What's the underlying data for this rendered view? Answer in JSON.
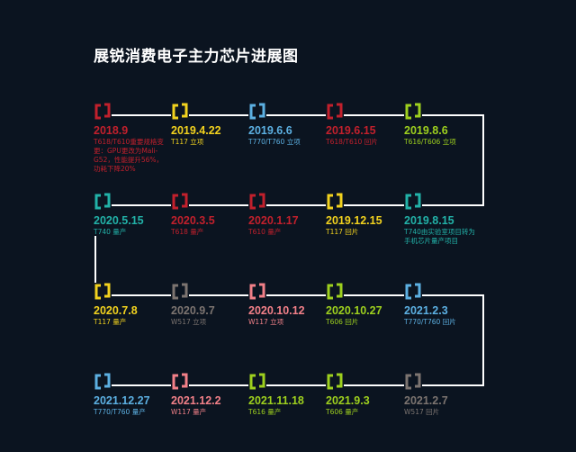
{
  "title": "展锐消费电子主力芯片进展图",
  "colors": {
    "background": "#0b1420",
    "line": "#ffffff",
    "red": "#c2202c",
    "yellow": "#f2d21e",
    "blue": "#5cb0e2",
    "green": "#9ed01e",
    "teal": "#22b2a8",
    "gray": "#7c7470",
    "pink": "#f28088"
  },
  "rows": [
    [
      {
        "date": "2018.9",
        "desc": "T618/T610重要规格变更：GPU更改为Mali-G52，性能提升56%，功耗下降20%",
        "color": "red",
        "icon": "bracket-icon"
      },
      {
        "date": "2019.4.22",
        "desc": "T117 立项",
        "color": "yellow",
        "icon": "bracket-icon"
      },
      {
        "date": "2019.6.6",
        "desc": "T770/T760 立项",
        "color": "blue",
        "icon": "bracket-icon"
      },
      {
        "date": "2019.6.15",
        "desc": "T618/T610 回片",
        "color": "red",
        "icon": "bracket-icon"
      },
      {
        "date": "2019.8.6",
        "desc": "T616/T606 立项",
        "color": "green",
        "icon": "bracket-icon"
      }
    ],
    [
      {
        "date": "2020.5.15",
        "desc": "T740 量产",
        "color": "teal",
        "icon": "bracket-icon"
      },
      {
        "date": "2020.3.5",
        "desc": "T618 量产",
        "color": "red",
        "icon": "bracket-icon"
      },
      {
        "date": "2020.1.17",
        "desc": "T610 量产",
        "color": "red",
        "icon": "bracket-icon"
      },
      {
        "date": "2019.12.15",
        "desc": "T117 回片",
        "color": "yellow",
        "icon": "bracket-icon"
      },
      {
        "date": "2019.8.15",
        "desc": "T740由实验室项目转为手机芯片量产项目",
        "color": "teal",
        "icon": "bracket-icon"
      }
    ],
    [
      {
        "date": "2020.7.8",
        "desc": "T117 量产",
        "color": "yellow",
        "icon": "bracket-icon"
      },
      {
        "date": "2020.9.7",
        "desc": "W517 立项",
        "color": "gray",
        "icon": "bracket-icon"
      },
      {
        "date": "2020.10.12",
        "desc": "W117 立项",
        "color": "pink",
        "icon": "bracket-icon"
      },
      {
        "date": "2020.10.27",
        "desc": "T606 回片",
        "color": "green",
        "icon": "bracket-icon"
      },
      {
        "date": "2021.2.3",
        "desc": "T770/T760 回片",
        "color": "blue",
        "icon": "bracket-icon"
      }
    ],
    [
      {
        "date": "2021.12.27",
        "desc": "T770/T760 量产",
        "color": "blue",
        "icon": "bracket-icon"
      },
      {
        "date": "2021.12.2",
        "desc": "W117 量产",
        "color": "pink",
        "icon": "bracket-icon"
      },
      {
        "date": "2021.11.18",
        "desc": "T616 量产",
        "color": "green",
        "icon": "bracket-icon"
      },
      {
        "date": "2021.9.3",
        "desc": "T606 量产",
        "color": "green",
        "icon": "bracket-icon"
      },
      {
        "date": "2021.2.7",
        "desc": "W517 回片",
        "color": "gray",
        "icon": "bracket-icon"
      }
    ]
  ]
}
